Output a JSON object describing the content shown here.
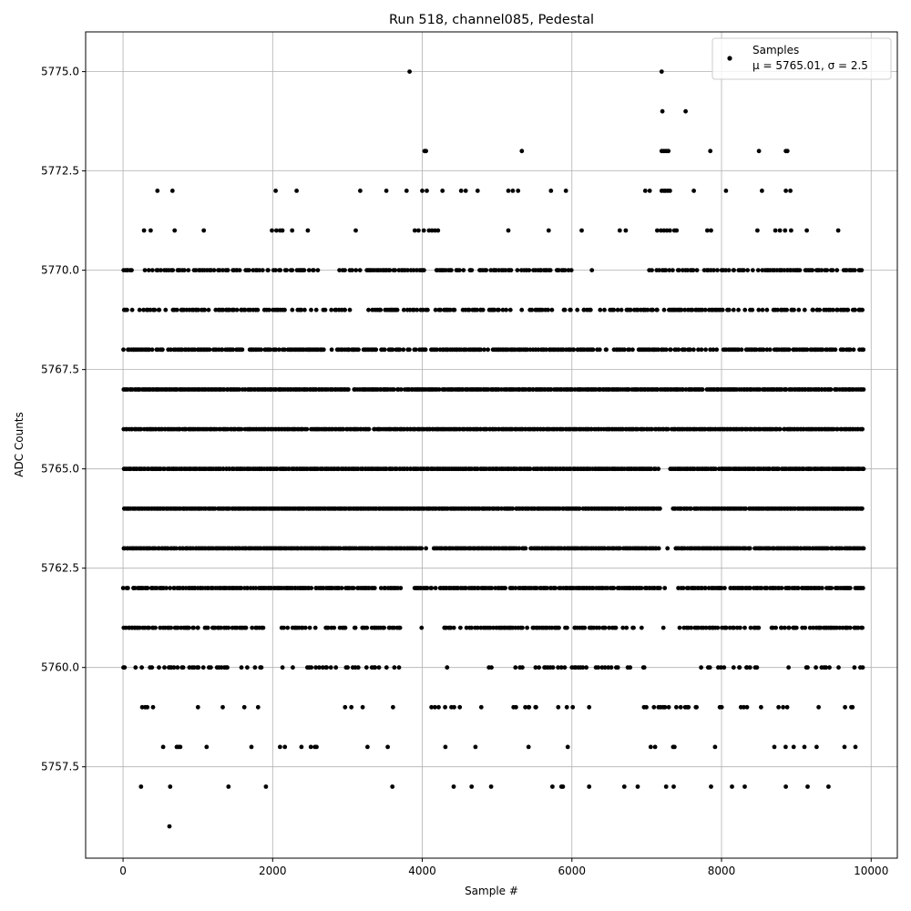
{
  "chart_data": {
    "type": "scatter",
    "title": "Run 518, channel085, Pedestal",
    "xlabel": "Sample #",
    "ylabel": "ADC Counts",
    "xlim": [
      -500,
      10350
    ],
    "ylim": [
      5755.2,
      5776.0
    ],
    "xticks": [
      0,
      2000,
      4000,
      6000,
      8000,
      10000
    ],
    "xtick_labels": [
      "0",
      "2000",
      "4000",
      "6000",
      "8000",
      "10000"
    ],
    "yticks": [
      5757.5,
      5760.0,
      5762.5,
      5765.0,
      5767.5,
      5770.0,
      5772.5,
      5775.0
    ],
    "ytick_labels": [
      "5757.5",
      "5760.0",
      "5762.5",
      "5765.0",
      "5767.5",
      "5770.0",
      "5772.5",
      "5775.0"
    ],
    "grid": true,
    "legend": {
      "position": "top-right",
      "entries": [
        {
          "label": "Samples",
          "sublabel": "μ = 5765.01, σ = 2.5",
          "marker": "circle",
          "color": "#000000"
        }
      ]
    },
    "point_color": "#000000",
    "x_range": [
      0,
      9900
    ],
    "n_samples": 9900,
    "series": [
      {
        "name": "Samples",
        "x": [
          3830,
          7200,
          7210,
          7520,
          4030,
          4050,
          5330,
          7200,
          7230,
          7260,
          7290,
          7850,
          8500,
          8860,
          8880,
          460,
          660,
          2040,
          2320,
          3170,
          3520,
          3790,
          4000,
          4060,
          4270,
          4520,
          4580,
          4740,
          5150,
          5210,
          5280,
          5720,
          5920,
          6980,
          7040,
          7200,
          7230,
          7250,
          7280,
          7310,
          7630,
          8060,
          8540,
          8860,
          8920,
          280,
          370,
          690,
          1080,
          1990,
          2050,
          2100,
          2130,
          2260,
          2470,
          3110,
          3900,
          3950,
          4020,
          4090,
          4130,
          4170,
          4210,
          5150,
          5690,
          6130,
          6640,
          6720,
          7140,
          7190,
          7230,
          7270,
          7310,
          7370,
          7400,
          7810,
          7860,
          8480,
          8720,
          8780,
          8850,
          8930,
          9140,
          9560,
          630,
          1910,
          4420,
          4660,
          4920,
          5860,
          6230,
          6880,
          7260,
          7360,
          7860,
          8310,
          8860,
          9430,
          240,
          1410,
          3600,
          5740,
          5880,
          6700,
          8140,
          9150,
          620
        ],
        "y": [
          5775.0,
          5775.0,
          5774.0,
          5774.0,
          5773.0,
          5773.0,
          5773.0,
          5773.0,
          5773.0,
          5773.0,
          5773.0,
          5773.0,
          5773.0,
          5773.0,
          5773.0,
          5772.0,
          5772.0,
          5772.0,
          5772.0,
          5772.0,
          5772.0,
          5772.0,
          5772.0,
          5772.0,
          5772.0,
          5772.0,
          5772.0,
          5772.0,
          5772.0,
          5772.0,
          5772.0,
          5772.0,
          5772.0,
          5772.0,
          5772.0,
          5772.0,
          5772.0,
          5772.0,
          5772.0,
          5772.0,
          5772.0,
          5772.0,
          5772.0,
          5772.0,
          5772.0,
          5771.0,
          5771.0,
          5771.0,
          5771.0,
          5771.0,
          5771.0,
          5771.0,
          5771.0,
          5771.0,
          5771.0,
          5771.0,
          5771.0,
          5771.0,
          5771.0,
          5771.0,
          5771.0,
          5771.0,
          5771.0,
          5771.0,
          5771.0,
          5771.0,
          5771.0,
          5771.0,
          5771.0,
          5771.0,
          5771.0,
          5771.0,
          5771.0,
          5771.0,
          5771.0,
          5771.0,
          5771.0,
          5771.0,
          5771.0,
          5771.0,
          5771.0,
          5771.0,
          5771.0,
          5771.0,
          5757.0,
          5757.0,
          5757.0,
          5757.0,
          5757.0,
          5757.0,
          5757.0,
          5757.0,
          5757.0,
          5757.0,
          5757.0,
          5757.0,
          5757.0,
          5757.0,
          5757.0,
          5757.0,
          5757.0,
          5757.0,
          5757.0,
          5757.0,
          5757.0,
          5757.0,
          5756.0
        ]
      }
    ],
    "dense_levels": [
      {
        "y": 5770.0,
        "density": 0.55,
        "gaps": [
          [
            150,
            330
          ],
          [
            2570,
            2820
          ],
          [
            5960,
            6960
          ]
        ]
      },
      {
        "y": 5769.0,
        "density": 0.55,
        "gaps": [
          [
            2520,
            2660
          ],
          [
            2980,
            3240
          ],
          [
            5200,
            5400
          ]
        ]
      },
      {
        "y": 5768.0,
        "density": 0.75,
        "gaps": [
          [
            2680,
            2860
          ]
        ]
      },
      {
        "y": 5767.0,
        "density": 0.95,
        "gaps": []
      },
      {
        "y": 5766.0,
        "density": 0.97,
        "gaps": []
      },
      {
        "y": 5765.0,
        "density": 0.97,
        "gaps": [
          [
            7160,
            7330
          ]
        ]
      },
      {
        "y": 5764.0,
        "density": 0.97,
        "gaps": [
          [
            7160,
            7330
          ]
        ]
      },
      {
        "y": 5763.0,
        "density": 0.95,
        "gaps": [
          [
            3990,
            4140
          ],
          [
            7170,
            7380
          ]
        ]
      },
      {
        "y": 5762.0,
        "density": 0.85,
        "gaps": [
          [
            3720,
            3880
          ],
          [
            7180,
            7400
          ]
        ]
      },
      {
        "y": 5761.0,
        "density": 0.6,
        "gaps": [
          [
            1900,
            2120
          ],
          [
            3720,
            3960
          ],
          [
            4000,
            4280
          ],
          [
            6840,
            7420
          ],
          [
            8500,
            8650
          ]
        ]
      },
      {
        "y": 5760.0,
        "density": 0.32,
        "gaps": [
          [
            1860,
            2120
          ],
          [
            3720,
            4240
          ],
          [
            4320,
            4860
          ],
          [
            6990,
            7720
          ],
          [
            8600,
            9110
          ]
        ]
      },
      {
        "y": 5759.0,
        "density": 0.12,
        "gaps": []
      },
      {
        "y": 5758.0,
        "density": 0.05,
        "gaps": []
      }
    ]
  }
}
